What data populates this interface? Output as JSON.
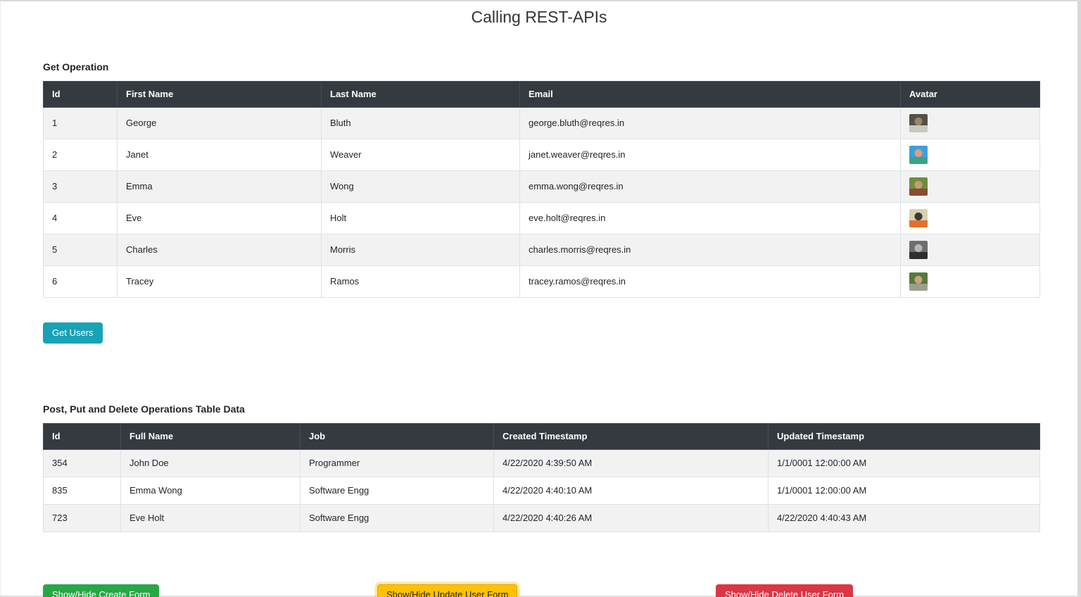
{
  "title": "Calling REST-APIs",
  "get_section": {
    "heading": "Get Operation",
    "columns": [
      "Id",
      "First Name",
      "Last Name",
      "Email",
      "Avatar"
    ],
    "users": [
      {
        "id": "1",
        "first_name": "George",
        "last_name": "Bluth",
        "email": "george.bluth@reqres.in",
        "avatar": {
          "top": "#53524a",
          "bottom": "#c9c8c0",
          "face": "#9c8468"
        }
      },
      {
        "id": "2",
        "first_name": "Janet",
        "last_name": "Weaver",
        "email": "janet.weaver@reqres.in",
        "avatar": {
          "top": "#3f9edd",
          "bottom": "#3aa38a",
          "face": "#d9a077"
        }
      },
      {
        "id": "3",
        "first_name": "Emma",
        "last_name": "Wong",
        "email": "emma.wong@reqres.in",
        "avatar": {
          "top": "#6f8c3f",
          "bottom": "#8a4a33",
          "face": "#c79b72"
        }
      },
      {
        "id": "4",
        "first_name": "Eve",
        "last_name": "Holt",
        "email": "eve.holt@reqres.in",
        "avatar": {
          "top": "#d9cfae",
          "bottom": "#e2702a",
          "face": "#3a3a35"
        }
      },
      {
        "id": "5",
        "first_name": "Charles",
        "last_name": "Morris",
        "email": "charles.morris@reqres.in",
        "avatar": {
          "top": "#6e6e6e",
          "bottom": "#2e2e2e",
          "face": "#b5b5b5"
        }
      },
      {
        "id": "6",
        "first_name": "Tracey",
        "last_name": "Ramos",
        "email": "tracey.ramos@reqres.in",
        "avatar": {
          "top": "#55793b",
          "bottom": "#9aa08e",
          "face": "#c9a27d"
        }
      }
    ],
    "get_users_button": "Get Users"
  },
  "mutation_section": {
    "heading": "Post, Put and Delete Operations Table Data",
    "columns": [
      "Id",
      "Full Name",
      "Job",
      "Created Timestamp",
      "Updated Timestamp"
    ],
    "records": [
      {
        "id": "354",
        "full_name": "John Doe",
        "job": "Programmer",
        "created": "4/22/2020 4:39:50 AM",
        "updated": "1/1/0001 12:00:00 AM"
      },
      {
        "id": "835",
        "full_name": "Emma Wong",
        "job": "Software Engg",
        "created": "4/22/2020 4:40:10 AM",
        "updated": "1/1/0001 12:00:00 AM"
      },
      {
        "id": "723",
        "full_name": "Eve Holt",
        "job": "Software Engg",
        "created": "4/22/2020 4:40:26 AM",
        "updated": "4/22/2020 4:40:43 AM"
      }
    ],
    "create_button": "Show/Hide Create Form",
    "update_button": "Show/Hide Update User Form",
    "delete_button": "Show/Hide Delete User Form"
  },
  "colors": {
    "table_header_bg": "#343a40",
    "stripe_row_bg": "#f2f2f2",
    "info_button": "#17a2b8",
    "success_button": "#28a745",
    "warning_button": "#ffc107",
    "danger_button": "#dc3545"
  }
}
